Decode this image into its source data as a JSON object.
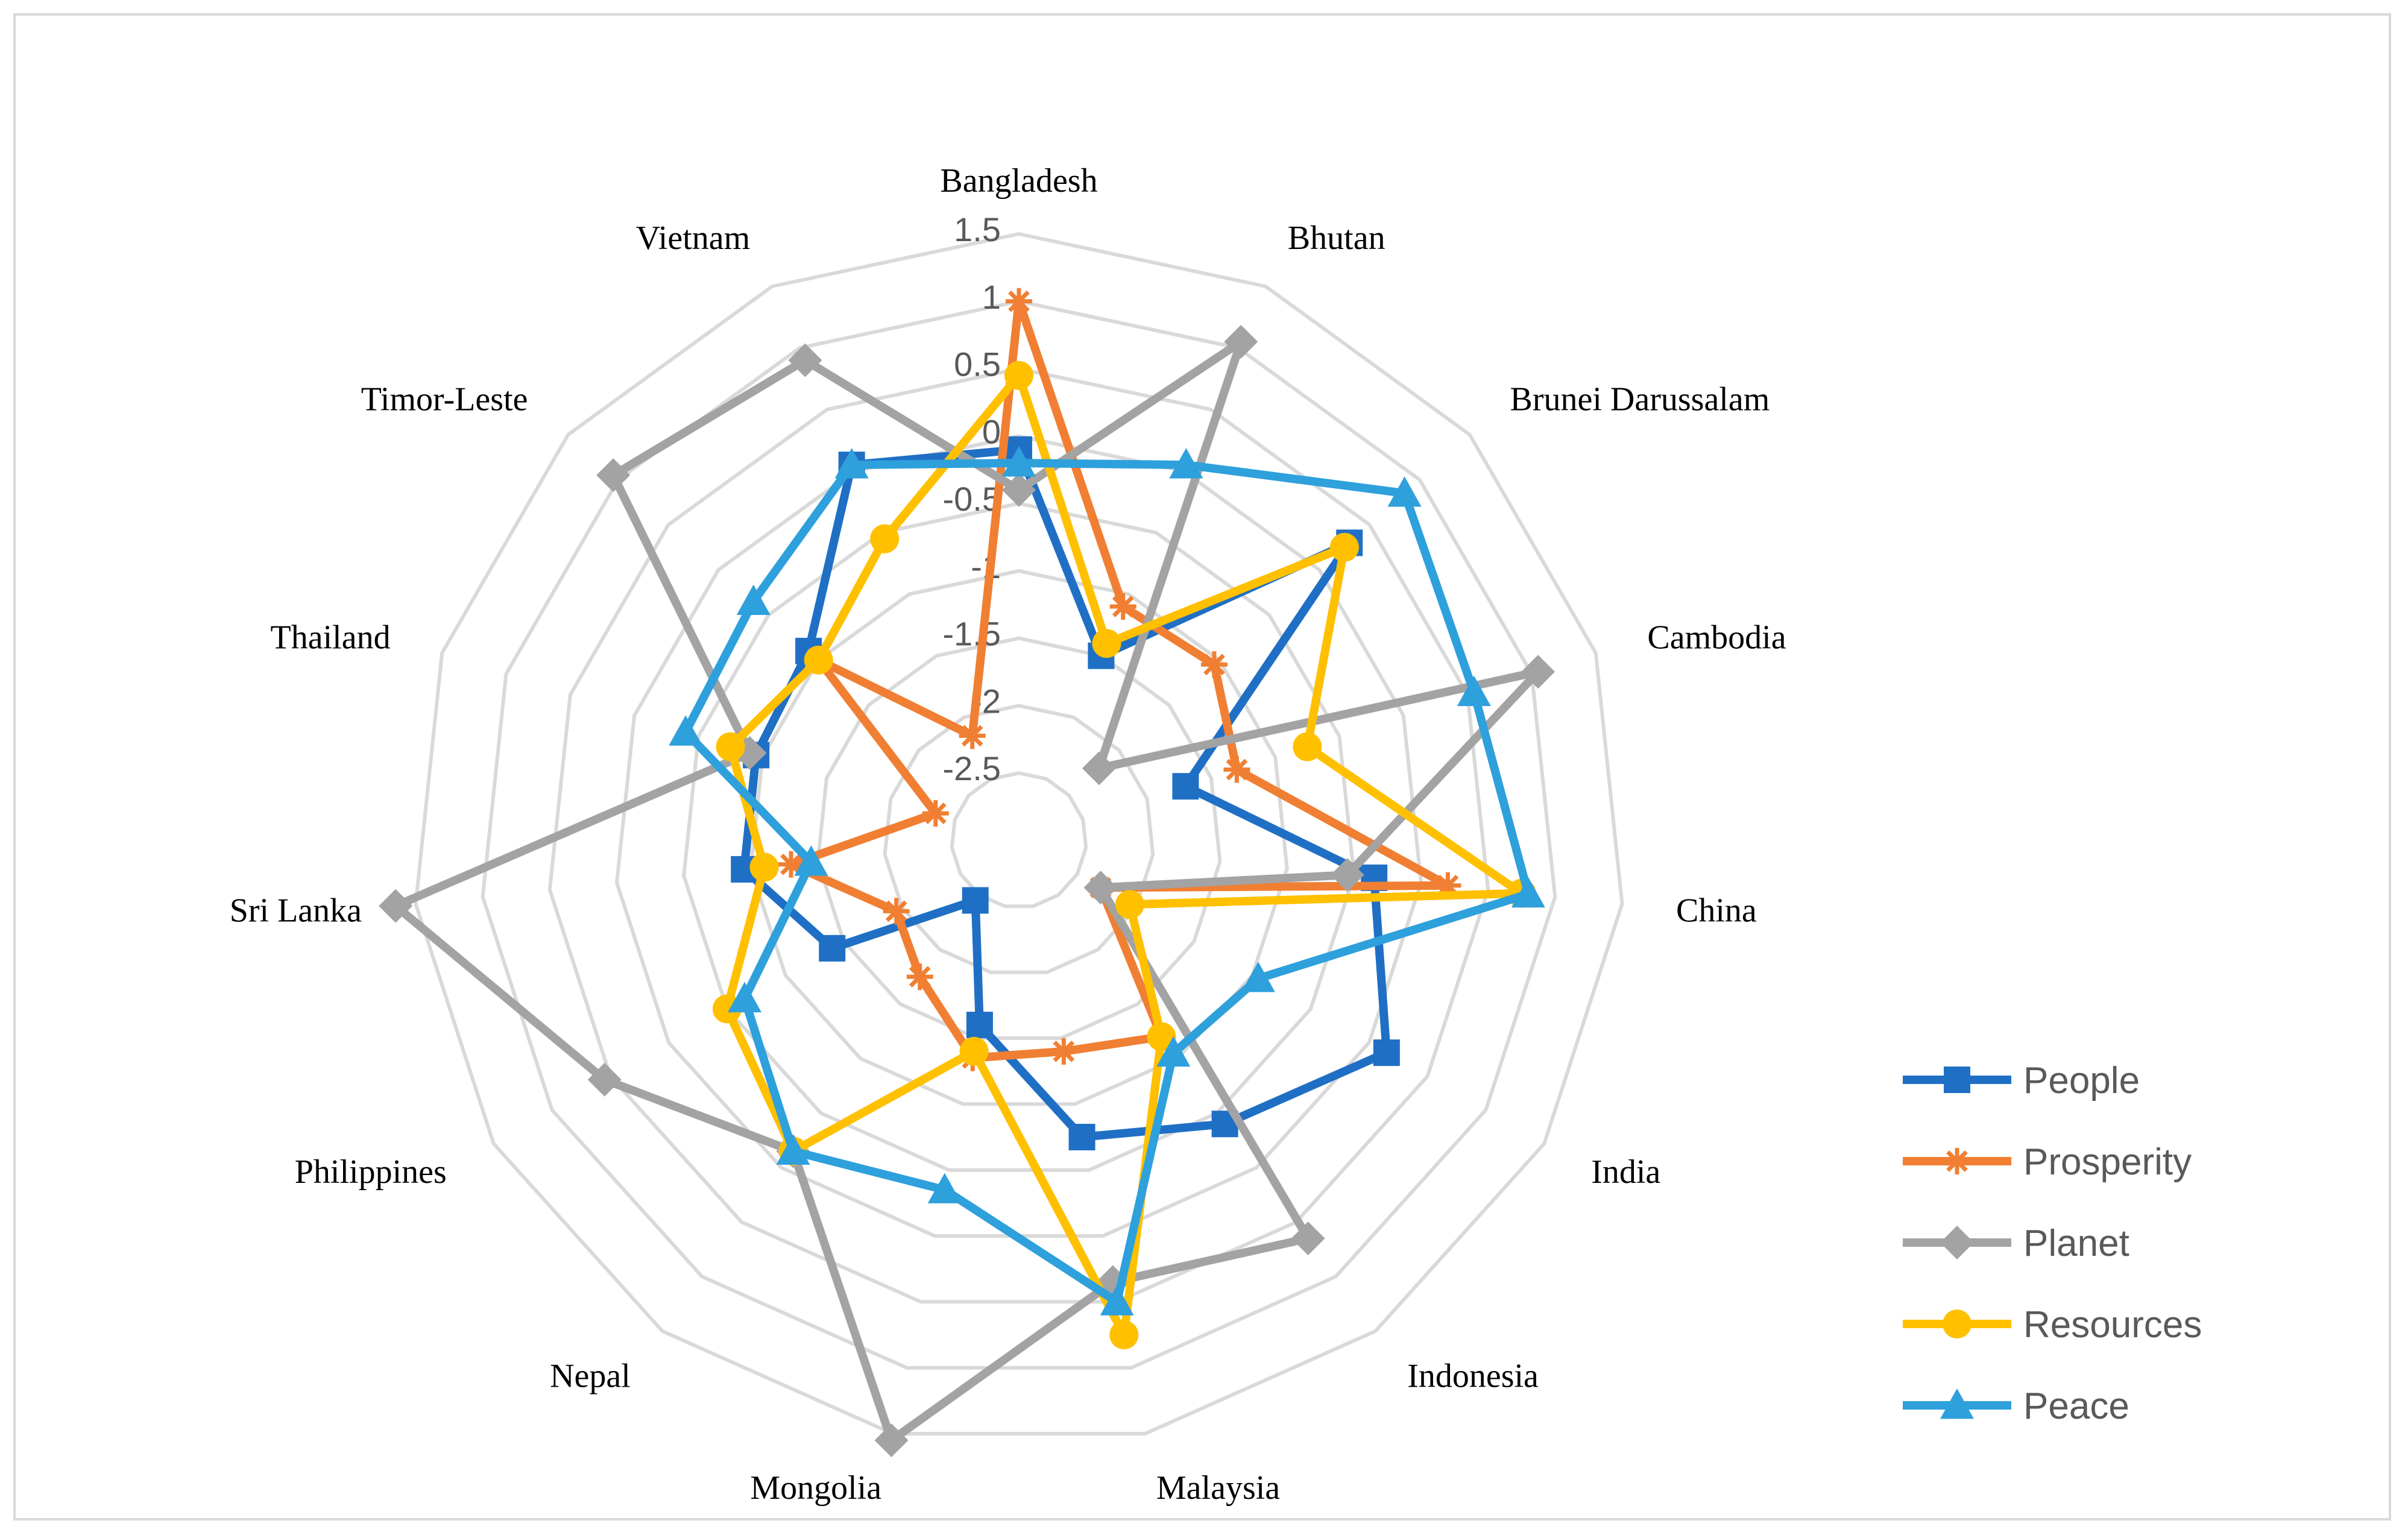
{
  "chart_data": {
    "type": "radar",
    "categories": [
      "Bangladesh",
      "Bhutan",
      "Brunei Darussalam",
      "Cambodia",
      "China",
      "India",
      "Indonesia",
      "Malaysia",
      "Mongolia",
      "Nepal",
      "Philippines",
      "Sri Lanka",
      "Thailand",
      "Timor-Leste",
      "Vietnam"
    ],
    "rlim": [
      -3,
      1.5
    ],
    "ticks": [
      -2.5,
      -2,
      -1.5,
      -1,
      -0.5,
      0,
      0.5,
      1,
      1.5
    ],
    "tick_labels": [
      "-2.5",
      "-2",
      "-1.5",
      "-1",
      "-0.5",
      "0",
      "0.5",
      "1",
      "1.5"
    ],
    "grid": true,
    "legend_position": "right",
    "series": [
      {
        "name": "People",
        "color": "#1f6fc5",
        "marker": "square",
        "values": [
          -0.1,
          -1.5,
          0.3,
          -1.7,
          -0.35,
          0.15,
          -0.4,
          -0.75,
          -1.6,
          -2.45,
          -1.4,
          -0.95,
          -0.95,
          -0.9,
          0.05
        ]
      },
      {
        "name": "Prosperity",
        "color": "#f07f33",
        "marker": "star",
        "values": [
          1.0,
          -1.1,
          -1.05,
          -1.3,
          0.2,
          -2.3,
          -1.2,
          -1.4,
          -1.35,
          -1.75,
          -1.95,
          -1.3,
          -2.35,
          -1.0,
          -2.15
        ]
      },
      {
        "name": "Planet",
        "color": "#a3a3a3",
        "marker": "diamond",
        "values": [
          -0.4,
          1.05,
          -2.2,
          1.05,
          -0.55,
          -2.3,
          0.65,
          0.35,
          1.55,
          -0.15,
          0.55,
          1.65,
          -0.9,
          1.05,
          0.9
        ]
      },
      {
        "name": "Resources",
        "color": "#ffc000",
        "marker": "circle",
        "values": [
          0.45,
          -1.4,
          0.25,
          -0.75,
          0.75,
          -2.05,
          -1.2,
          0.75,
          -1.4,
          -0.15,
          -0.5,
          -1.1,
          -0.75,
          -1.0,
          -0.55
        ]
      },
      {
        "name": "Peace",
        "color": "#2ea0dc",
        "marker": "triangle",
        "values": [
          -0.2,
          0.05,
          0.85,
          0.55,
          0.8,
          -0.95,
          -1.05,
          0.5,
          -0.35,
          -0.15,
          -0.65,
          -1.45,
          -0.4,
          -0.35,
          0.05
        ]
      }
    ]
  }
}
